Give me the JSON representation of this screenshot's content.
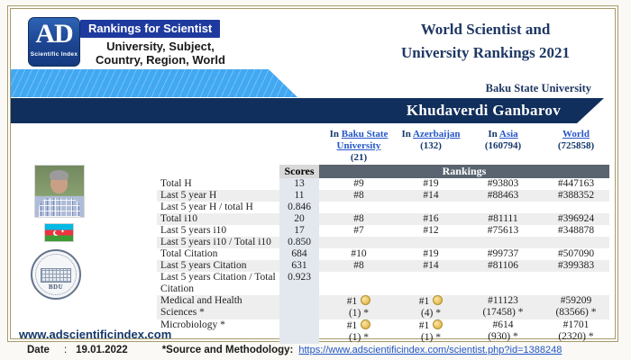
{
  "branding": {
    "logo_main": "AD",
    "logo_sub": "Scientific Index",
    "badge_label": "Rankings for Scientist",
    "tagline_line1": "University, Subject,",
    "tagline_line2": "Country, Region, World"
  },
  "header": {
    "title_line1": "World Scientist and",
    "title_line2": "University Rankings 2021",
    "university_name": "Baku State University",
    "scientist_name": "Khudaverdi Ganbarov"
  },
  "left_panel": {
    "seal_label": "BDU"
  },
  "table": {
    "scores_header": "Scores",
    "rankings_header": "Rankings",
    "columns": [
      {
        "prefix": "In",
        "link": "Baku State University",
        "count": "(21)"
      },
      {
        "prefix": "In",
        "link": "Azerbaijan",
        "count": "(132)"
      },
      {
        "prefix": "In",
        "link": "Asia",
        "count": "(160794)"
      },
      {
        "prefix": "",
        "link": "World",
        "count": "(725858)"
      }
    ],
    "rows": [
      {
        "label": "Total H",
        "score": "13",
        "cells": [
          {
            "rank": "#9"
          },
          {
            "rank": "#19"
          },
          {
            "rank": "#93803"
          },
          {
            "rank": "#447163"
          }
        ]
      },
      {
        "label": "Last 5 year H",
        "score": "11",
        "cells": [
          {
            "rank": "#8"
          },
          {
            "rank": "#14"
          },
          {
            "rank": "#88463"
          },
          {
            "rank": "#388352"
          }
        ]
      },
      {
        "label": "Last 5 year H / total H",
        "score": "0.846",
        "cells": [
          {
            "rank": ""
          },
          {
            "rank": ""
          },
          {
            "rank": ""
          },
          {
            "rank": ""
          }
        ]
      },
      {
        "label": "Total i10",
        "score": "20",
        "cells": [
          {
            "rank": "#8"
          },
          {
            "rank": "#16"
          },
          {
            "rank": "#81111"
          },
          {
            "rank": "#396924"
          }
        ]
      },
      {
        "label": "Last 5 years i10",
        "score": "17",
        "cells": [
          {
            "rank": "#7"
          },
          {
            "rank": "#12"
          },
          {
            "rank": "#75613"
          },
          {
            "rank": "#348878"
          }
        ]
      },
      {
        "label": "Last 5 years i10 / Total i10",
        "score": "0.850",
        "cells": [
          {
            "rank": ""
          },
          {
            "rank": ""
          },
          {
            "rank": ""
          },
          {
            "rank": ""
          }
        ]
      },
      {
        "label": "Total Citation",
        "score": "684",
        "cells": [
          {
            "rank": "#10"
          },
          {
            "rank": "#19"
          },
          {
            "rank": "#99737"
          },
          {
            "rank": "#507090"
          }
        ]
      },
      {
        "label": "Last 5 years Citation",
        "score": "631",
        "cells": [
          {
            "rank": "#8"
          },
          {
            "rank": "#14"
          },
          {
            "rank": "#81106"
          },
          {
            "rank": "#399383"
          }
        ]
      },
      {
        "label": "Last 5 years Citation / Total Citation",
        "score": "0.923",
        "cells": [
          {
            "rank": ""
          },
          {
            "rank": ""
          },
          {
            "rank": ""
          },
          {
            "rank": ""
          }
        ]
      },
      {
        "label": "Medical and Health Sciences *",
        "score": "",
        "cells": [
          {
            "rank": "#1",
            "medal": true,
            "sub": "(1) *"
          },
          {
            "rank": "#1",
            "medal": true,
            "sub": "(4) *"
          },
          {
            "rank": "#11123",
            "sub": "(17458) *"
          },
          {
            "rank": "#59209",
            "sub": "(83566) *"
          }
        ]
      },
      {
        "label": "Microbiology *",
        "score": "",
        "cells": [
          {
            "rank": "#1",
            "medal": true,
            "sub": "(1) *"
          },
          {
            "rank": "#1",
            "medal": true,
            "sub": "(1) *"
          },
          {
            "rank": "#614",
            "sub": "(930) *"
          },
          {
            "rank": "#1701",
            "sub": "(2320) *"
          }
        ]
      }
    ]
  },
  "footer": {
    "website": "www.adscientificindex.com",
    "date_label": "Date",
    "date_separator": ":",
    "date_value": "19.01.2022",
    "source_label": "*Source and Methodology:",
    "source_url": "https://www.adscientificindex.com/scientist.php?id=1388248"
  },
  "colors": {
    "banner_navy": "#112f5c",
    "title_navy": "#1f3864",
    "badge_blue": "#1e3a9e",
    "light_blue": "#41a8f2",
    "link_blue": "#2456c8",
    "frame_tan": "#a79a6b",
    "rankings_bar_gray": "#5a6470",
    "scores_column_bg": "#e3e8ef",
    "medal_gold": "#e3b84d"
  }
}
